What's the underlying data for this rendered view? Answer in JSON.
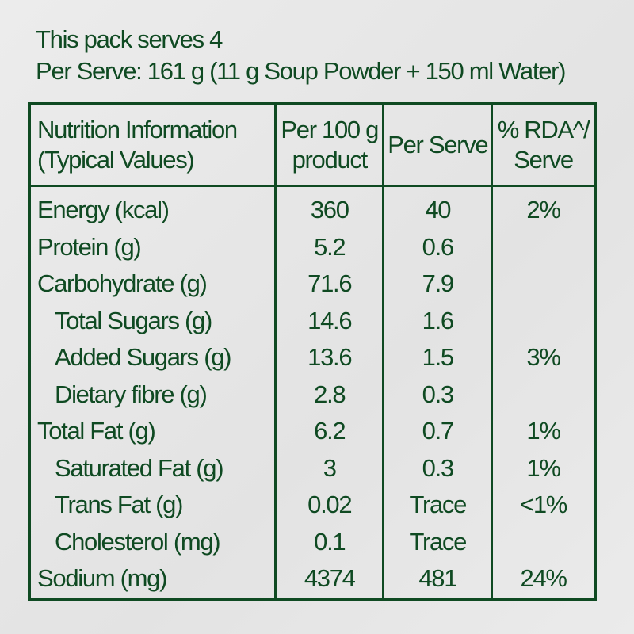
{
  "serves": "This pack serves 4",
  "per_serve": "Per Serve: 161 g (11 g Soup Powder + 150 ml Water)",
  "headers": {
    "c0a": "Nutrition Information",
    "c0b": "(Typical Values)",
    "c1a": "Per 100 g",
    "c1b": "product",
    "c2": "Per Serve",
    "c3a": "% RDA^/",
    "c3b": "Serve"
  },
  "rows": [
    {
      "name": "Energy (kcal)",
      "per100": "360",
      "serve": "40",
      "rda": "2%"
    },
    {
      "name": "Protein (g)",
      "per100": "5.2",
      "serve": "0.6",
      "rda": ""
    },
    {
      "name": "Carbohydrate (g)",
      "per100": "71.6",
      "serve": "7.9",
      "rda": ""
    },
    {
      "name": "Total Sugars (g)",
      "per100": "14.6",
      "serve": "1.6",
      "rda": ""
    },
    {
      "name": "Added Sugars (g)",
      "per100": "13.6",
      "serve": "1.5",
      "rda": "3%"
    },
    {
      "name": "Dietary fibre (g)",
      "per100": "2.8",
      "serve": "0.3",
      "rda": ""
    },
    {
      "name": "Total Fat (g)",
      "per100": "6.2",
      "serve": "0.7",
      "rda": "1%"
    },
    {
      "name": "Saturated Fat (g)",
      "per100": "3",
      "serve": "0.3",
      "rda": "1%"
    },
    {
      "name": "Trans Fat (g)",
      "per100": "0.02",
      "serve": "Trace",
      "rda": "<1%"
    },
    {
      "name": "Cholesterol (mg)",
      "per100": "0.1",
      "serve": "Trace",
      "rda": ""
    },
    {
      "name": "Sodium (mg)",
      "per100": "4374",
      "serve": "481",
      "rda": "24%"
    }
  ]
}
